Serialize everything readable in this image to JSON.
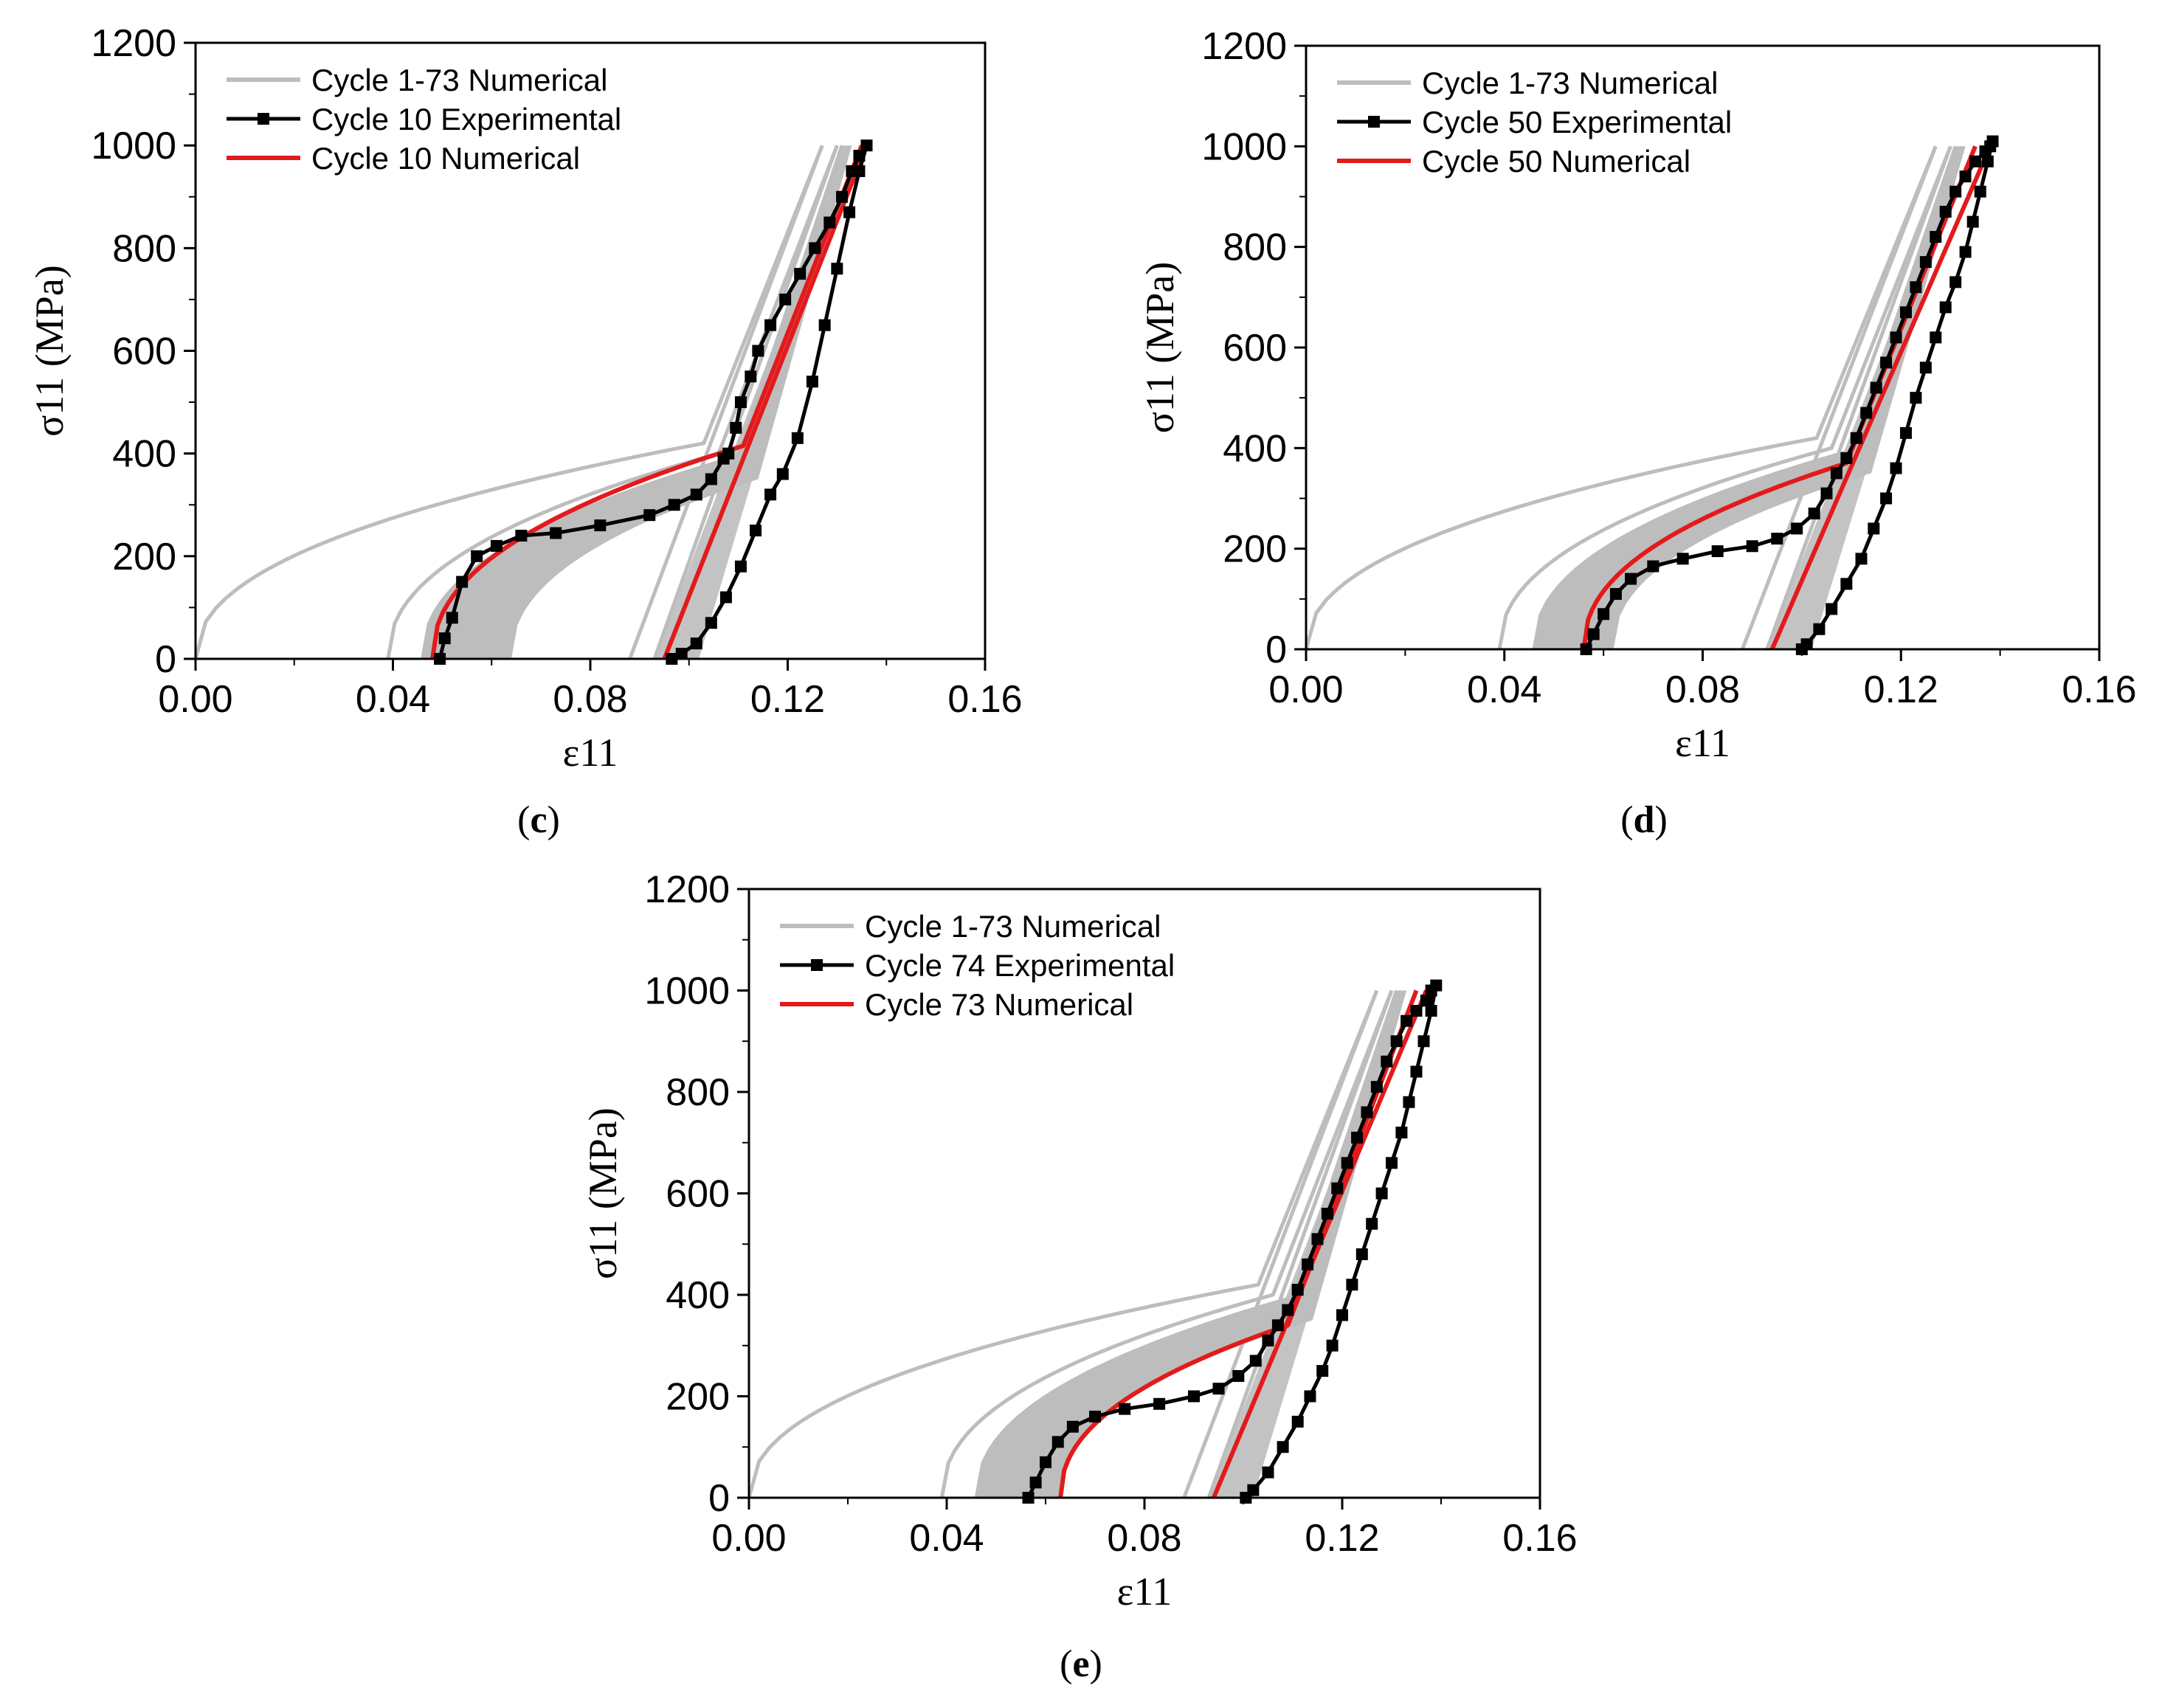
{
  "figure": {
    "colors": {
      "numerical_family": "#bdbdbd",
      "experimental": "#000000",
      "numerical_highlight": "#e31a1c"
    }
  },
  "chart_data": [
    {
      "type": "line",
      "panel_label": "(c)",
      "panel_letter": "c",
      "xlabel": "ε11",
      "ylabel": "σ11 (MPa)",
      "xlim": [
        0.0,
        0.16
      ],
      "ylim": [
        0,
        1200
      ],
      "xticks": [
        "0.00",
        "0.04",
        "0.08",
        "0.12",
        "0.16"
      ],
      "yticks": [
        "0",
        "200",
        "400",
        "600",
        "800",
        "1000",
        "1200"
      ],
      "legend": [
        "Cycle 1-73 Numerical",
        "Cycle 10 Experimental",
        "Cycle 10 Numerical"
      ],
      "band": {
        "name": "Cycle 1-73 Numerical",
        "curves": [
          {
            "label": "cycle 1",
            "x0": 0.0,
            "xk": 0.103,
            "sk": 420,
            "xt": 0.127
          },
          {
            "label": "cycle 2",
            "x0": 0.039,
            "xk": 0.106,
            "sk": 400,
            "xt": 0.13
          },
          {
            "label": "band start",
            "x0": 0.046,
            "xk": 0.11,
            "sk": 395,
            "xt": 0.131
          },
          {
            "label": "band end",
            "x0": 0.064,
            "xk": 0.114,
            "sk": 350,
            "xt": 0.133
          }
        ],
        "unloading_x_at_zero": [
          0.088,
          0.093,
          0.098
        ]
      },
      "series": [
        {
          "name": "Cycle 10 Numerical",
          "loading": {
            "x0": 0.048,
            "xk": 0.111,
            "sk": 415,
            "xt": 0.135
          },
          "unloading": [
            [
              0.136,
              1000
            ],
            [
              0.095,
              0
            ]
          ]
        },
        {
          "name": "Cycle 10 Experimental",
          "x": [
            0.0495,
            0.0505,
            0.052,
            0.054,
            0.057,
            0.061,
            0.066,
            0.073,
            0.082,
            0.092,
            0.097,
            0.1015,
            0.1045,
            0.107,
            0.108,
            0.1095,
            0.1105,
            0.1125,
            0.114,
            0.1165,
            0.1195,
            0.1225,
            0.1255,
            0.1285,
            0.131,
            0.133,
            0.1345,
            0.136,
            0.1345,
            0.1325,
            0.13,
            0.1275,
            0.125,
            0.122,
            0.119,
            0.1165,
            0.1135,
            0.1105,
            0.1075,
            0.1045,
            0.1015,
            0.0985,
            0.0965
          ],
          "y": [
            0,
            40,
            80,
            150,
            200,
            220,
            240,
            245,
            260,
            280,
            300,
            320,
            350,
            390,
            400,
            450,
            500,
            550,
            600,
            650,
            700,
            750,
            800,
            850,
            900,
            950,
            980,
            1000,
            950,
            870,
            760,
            650,
            540,
            430,
            360,
            320,
            250,
            180,
            120,
            70,
            30,
            10,
            0
          ]
        }
      ]
    },
    {
      "type": "line",
      "panel_label": "(d)",
      "panel_letter": "d",
      "xlabel": "ε11",
      "ylabel": "σ11 (MPa)",
      "xlim": [
        0.0,
        0.16
      ],
      "ylim": [
        0,
        1200
      ],
      "xticks": [
        "0.00",
        "0.04",
        "0.08",
        "0.12",
        "0.16"
      ],
      "yticks": [
        "0",
        "200",
        "400",
        "600",
        "800",
        "1000",
        "1200"
      ],
      "legend": [
        "Cycle 1-73 Numerical",
        "Cycle 50 Experimental",
        "Cycle 50 Numerical"
      ],
      "band": {
        "name": "Cycle 1-73 Numerical",
        "curves": [
          {
            "label": "cycle 1",
            "x0": 0.0,
            "xk": 0.103,
            "sk": 420,
            "xt": 0.127
          },
          {
            "label": "cycle 2",
            "x0": 0.039,
            "xk": 0.106,
            "sk": 400,
            "xt": 0.13
          },
          {
            "label": "band start",
            "x0": 0.046,
            "xk": 0.11,
            "sk": 395,
            "xt": 0.131
          },
          {
            "label": "band end",
            "x0": 0.062,
            "xk": 0.114,
            "sk": 350,
            "xt": 0.133
          }
        ],
        "unloading_x_at_zero": [
          0.088,
          0.093,
          0.098
        ]
      },
      "series": [
        {
          "name": "Cycle 50 Numerical",
          "loading": {
            "x0": 0.056,
            "xk": 0.109,
            "sk": 370,
            "xt": 0.135
          },
          "unloading": [
            [
              0.138,
              1000
            ],
            [
              0.094,
              0
            ]
          ]
        },
        {
          "name": "Cycle 50 Experimental",
          "x": [
            0.0565,
            0.058,
            0.06,
            0.0625,
            0.0655,
            0.07,
            0.076,
            0.083,
            0.09,
            0.095,
            0.099,
            0.1025,
            0.105,
            0.107,
            0.109,
            0.111,
            0.113,
            0.115,
            0.117,
            0.119,
            0.121,
            0.123,
            0.125,
            0.127,
            0.129,
            0.131,
            0.133,
            0.135,
            0.137,
            0.138,
            0.1385,
            0.1375,
            0.136,
            0.1345,
            0.133,
            0.131,
            0.129,
            0.127,
            0.125,
            0.123,
            0.121,
            0.119,
            0.117,
            0.1145,
            0.112,
            0.109,
            0.106,
            0.1035,
            0.101,
            0.1
          ],
          "y": [
            0,
            30,
            70,
            110,
            140,
            165,
            180,
            195,
            205,
            220,
            240,
            270,
            310,
            350,
            380,
            420,
            470,
            520,
            570,
            620,
            670,
            720,
            770,
            820,
            870,
            910,
            940,
            970,
            990,
            1000,
            1010,
            970,
            910,
            850,
            790,
            730,
            680,
            620,
            560,
            500,
            430,
            360,
            300,
            240,
            180,
            130,
            80,
            40,
            10,
            0
          ]
        }
      ]
    },
    {
      "type": "line",
      "panel_label": "(e)",
      "panel_letter": "e",
      "xlabel": "ε11",
      "ylabel": "σ11 (MPa)",
      "xlim": [
        0.0,
        0.16
      ],
      "ylim": [
        0,
        1200
      ],
      "xticks": [
        "0.00",
        "0.04",
        "0.08",
        "0.12",
        "0.16"
      ],
      "yticks": [
        "0",
        "200",
        "400",
        "600",
        "800",
        "1000",
        "1200"
      ],
      "legend": [
        "Cycle 1-73 Numerical",
        "Cycle 74 Experimental",
        "Cycle 73 Numerical"
      ],
      "band": {
        "name": "Cycle 1-73 Numerical",
        "curves": [
          {
            "label": "cycle 1",
            "x0": 0.0,
            "xk": 0.103,
            "sk": 420,
            "xt": 0.127
          },
          {
            "label": "cycle 2",
            "x0": 0.039,
            "xk": 0.106,
            "sk": 400,
            "xt": 0.13
          },
          {
            "label": "band start",
            "x0": 0.046,
            "xk": 0.11,
            "sk": 395,
            "xt": 0.131
          },
          {
            "label": "band end",
            "x0": 0.063,
            "xk": 0.114,
            "sk": 350,
            "xt": 0.133
          }
        ],
        "unloading_x_at_zero": [
          0.088,
          0.093,
          0.098
        ]
      },
      "series": [
        {
          "name": "Cycle 73 Numerical",
          "loading": {
            "x0": 0.063,
            "xk": 0.109,
            "sk": 340,
            "xt": 0.135
          },
          "unloading": [
            [
              0.137,
              1000
            ],
            [
              0.094,
              0
            ]
          ]
        },
        {
          "name": "Cycle 74 Experimental",
          "x": [
            0.0565,
            0.058,
            0.06,
            0.0625,
            0.0655,
            0.07,
            0.076,
            0.083,
            0.09,
            0.095,
            0.099,
            0.1025,
            0.105,
            0.107,
            0.109,
            0.111,
            0.113,
            0.115,
            0.117,
            0.119,
            0.121,
            0.123,
            0.125,
            0.127,
            0.129,
            0.131,
            0.133,
            0.135,
            0.137,
            0.138,
            0.139,
            0.138,
            0.1365,
            0.135,
            0.1335,
            0.132,
            0.13,
            0.128,
            0.126,
            0.124,
            0.122,
            0.12,
            0.118,
            0.116,
            0.1135,
            0.111,
            0.108,
            0.105,
            0.102,
            0.1005
          ],
          "y": [
            0,
            30,
            70,
            110,
            140,
            160,
            175,
            185,
            200,
            215,
            240,
            270,
            310,
            340,
            370,
            410,
            460,
            510,
            560,
            610,
            660,
            710,
            760,
            810,
            860,
            900,
            940,
            960,
            980,
            1000,
            1010,
            960,
            900,
            840,
            780,
            720,
            660,
            600,
            540,
            480,
            420,
            360,
            300,
            250,
            200,
            150,
            100,
            50,
            15,
            0
          ]
        }
      ]
    }
  ]
}
